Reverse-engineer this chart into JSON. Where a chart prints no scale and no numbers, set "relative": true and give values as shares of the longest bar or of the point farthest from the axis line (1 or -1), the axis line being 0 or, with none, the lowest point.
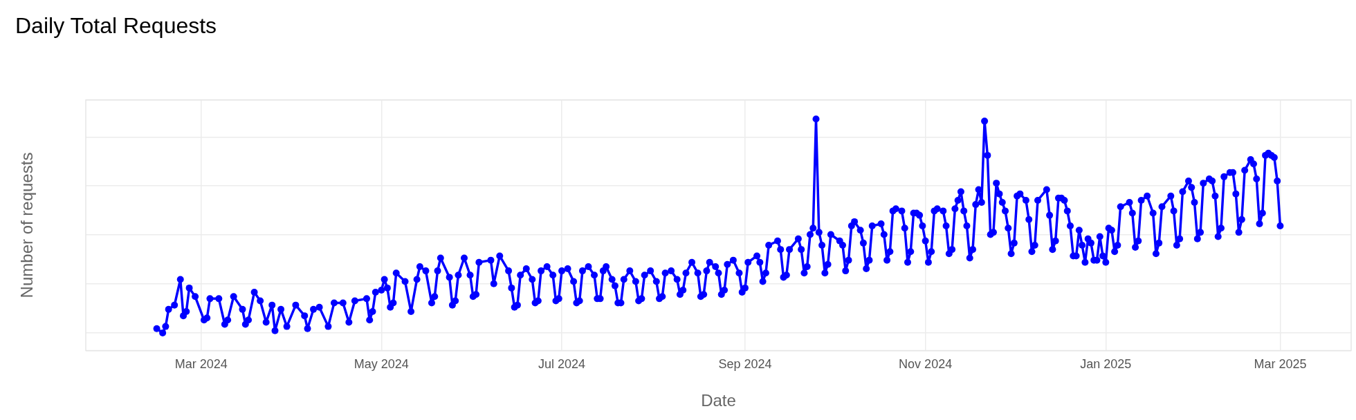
{
  "chart_data": {
    "type": "line",
    "title": "Daily Total Requests",
    "xlabel": "Date",
    "ylabel": "Number of requests",
    "relative": true,
    "grid": true,
    "legend": false,
    "marker": "circle",
    "line_style": "solid",
    "xlim": [
      "2024-01-22",
      "2025-03-25"
    ],
    "xticks": [
      {
        "value": "2024-03-01",
        "label": "Mar 2024"
      },
      {
        "value": "2024-05-01",
        "label": "May 2024"
      },
      {
        "value": "2024-07-01",
        "label": "Jul 2024"
      },
      {
        "value": "2024-09-01",
        "label": "Sep 2024"
      },
      {
        "value": "2024-11-01",
        "label": "Nov 2024"
      },
      {
        "value": "2025-01-01",
        "label": "Jan 2025"
      },
      {
        "value": "2025-03-01",
        "label": "Mar 2025"
      }
    ],
    "series": [
      {
        "color": "#0000ff",
        "x": [
          "2024-02-15",
          "2024-02-17",
          "2024-02-18",
          "2024-02-19",
          "2024-02-21",
          "2024-02-23",
          "2024-02-24",
          "2024-02-25",
          "2024-02-26",
          "2024-02-28",
          "2024-03-02",
          "2024-03-03",
          "2024-03-04",
          "2024-03-07",
          "2024-03-09",
          "2024-03-10",
          "2024-03-12",
          "2024-03-15",
          "2024-03-16",
          "2024-03-17",
          "2024-03-19",
          "2024-03-21",
          "2024-03-23",
          "2024-03-25",
          "2024-03-26",
          "2024-03-28",
          "2024-03-30",
          "2024-04-02",
          "2024-04-05",
          "2024-04-06",
          "2024-04-08",
          "2024-04-10",
          "2024-04-13",
          "2024-04-15",
          "2024-04-18",
          "2024-04-20",
          "2024-04-22",
          "2024-04-26",
          "2024-04-27",
          "2024-04-28",
          "2024-04-29",
          "2024-05-01",
          "2024-05-02",
          "2024-05-03",
          "2024-05-04",
          "2024-05-05",
          "2024-05-06",
          "2024-05-09",
          "2024-05-11",
          "2024-05-13",
          "2024-05-14",
          "2024-05-16",
          "2024-05-18",
          "2024-05-19",
          "2024-05-20",
          "2024-05-21",
          "2024-05-24",
          "2024-05-25",
          "2024-05-26",
          "2024-05-27",
          "2024-05-29",
          "2024-05-31",
          "2024-06-01",
          "2024-06-02",
          "2024-06-03",
          "2024-06-07",
          "2024-06-08",
          "2024-06-10",
          "2024-06-13",
          "2024-06-14",
          "2024-06-15",
          "2024-06-16",
          "2024-06-17",
          "2024-06-19",
          "2024-06-21",
          "2024-06-22",
          "2024-06-23",
          "2024-06-24",
          "2024-06-26",
          "2024-06-28",
          "2024-06-29",
          "2024-06-30",
          "2024-07-01",
          "2024-07-03",
          "2024-07-05",
          "2024-07-06",
          "2024-07-07",
          "2024-07-08",
          "2024-07-10",
          "2024-07-12",
          "2024-07-13",
          "2024-07-14",
          "2024-07-15",
          "2024-07-16",
          "2024-07-18",
          "2024-07-19",
          "2024-07-20",
          "2024-07-21",
          "2024-07-22",
          "2024-07-24",
          "2024-07-26",
          "2024-07-27",
          "2024-07-28",
          "2024-07-29",
          "2024-07-31",
          "2024-08-02",
          "2024-08-03",
          "2024-08-04",
          "2024-08-05",
          "2024-08-07",
          "2024-08-09",
          "2024-08-10",
          "2024-08-11",
          "2024-08-12",
          "2024-08-14",
          "2024-08-16",
          "2024-08-17",
          "2024-08-18",
          "2024-08-19",
          "2024-08-20",
          "2024-08-22",
          "2024-08-23",
          "2024-08-24",
          "2024-08-25",
          "2024-08-26",
          "2024-08-28",
          "2024-08-30",
          "2024-08-31",
          "2024-09-01",
          "2024-09-02",
          "2024-09-05",
          "2024-09-06",
          "2024-09-07",
          "2024-09-08",
          "2024-09-09",
          "2024-09-12",
          "2024-09-13",
          "2024-09-14",
          "2024-09-15",
          "2024-09-16",
          "2024-09-19",
          "2024-09-20",
          "2024-09-21",
          "2024-09-22",
          "2024-09-23",
          "2024-09-24",
          "2024-09-25",
          "2024-09-26",
          "2024-09-27",
          "2024-09-28",
          "2024-09-29",
          "2024-09-30",
          "2024-10-03",
          "2024-10-04",
          "2024-10-05",
          "2024-10-06",
          "2024-10-07",
          "2024-10-08",
          "2024-10-10",
          "2024-10-11",
          "2024-10-12",
          "2024-10-13",
          "2024-10-14",
          "2024-10-17",
          "2024-10-18",
          "2024-10-19",
          "2024-10-20",
          "2024-10-21",
          "2024-10-22",
          "2024-10-24",
          "2024-10-25",
          "2024-10-26",
          "2024-10-27",
          "2024-10-28",
          "2024-10-29",
          "2024-10-30",
          "2024-10-31",
          "2024-11-01",
          "2024-11-02",
          "2024-11-03",
          "2024-11-04",
          "2024-11-05",
          "2024-11-07",
          "2024-11-08",
          "2024-11-09",
          "2024-11-10",
          "2024-11-11",
          "2024-11-12",
          "2024-11-13",
          "2024-11-14",
          "2024-11-15",
          "2024-11-16",
          "2024-11-17",
          "2024-11-18",
          "2024-11-19",
          "2024-11-20",
          "2024-11-21",
          "2024-11-22",
          "2024-11-23",
          "2024-11-24",
          "2024-11-25",
          "2024-11-26",
          "2024-11-27",
          "2024-11-28",
          "2024-11-29",
          "2024-11-30",
          "2024-12-01",
          "2024-12-02",
          "2024-12-03",
          "2024-12-05",
          "2024-12-06",
          "2024-12-07",
          "2024-12-08",
          "2024-12-09",
          "2024-12-12",
          "2024-12-13",
          "2024-12-14",
          "2024-12-15",
          "2024-12-16",
          "2024-12-17",
          "2024-12-18",
          "2024-12-19",
          "2024-12-20",
          "2024-12-21",
          "2024-12-22",
          "2024-12-23",
          "2024-12-24",
          "2024-12-25",
          "2024-12-26",
          "2024-12-27",
          "2024-12-28",
          "2024-12-29",
          "2024-12-30",
          "2024-12-31",
          "2025-01-01",
          "2025-01-02",
          "2025-01-03",
          "2025-01-04",
          "2025-01-05",
          "2025-01-06",
          "2025-01-09",
          "2025-01-10",
          "2025-01-11",
          "2025-01-12",
          "2025-01-13",
          "2025-01-15",
          "2025-01-17",
          "2025-01-18",
          "2025-01-19",
          "2025-01-20",
          "2025-01-23",
          "2025-01-24",
          "2025-01-25",
          "2025-01-26",
          "2025-01-27",
          "2025-01-29",
          "2025-01-30",
          "2025-01-31",
          "2025-02-01",
          "2025-02-02",
          "2025-02-03",
          "2025-02-05",
          "2025-02-06",
          "2025-02-07",
          "2025-02-08",
          "2025-02-09",
          "2025-02-10",
          "2025-02-12",
          "2025-02-13",
          "2025-02-14",
          "2025-02-15",
          "2025-02-16",
          "2025-02-17",
          "2025-02-19",
          "2025-02-20",
          "2025-02-21",
          "2025-02-22",
          "2025-02-23",
          "2025-02-24",
          "2025-02-25",
          "2025-02-26",
          "2025-02-27",
          "2025-02-28",
          "2025-03-01"
        ],
        "values": [
          0.02,
          0,
          0.03,
          0.11,
          0.13,
          0.25,
          0.08,
          0.1,
          0.21,
          0.17,
          0.06,
          0.07,
          0.16,
          0.16,
          0.04,
          0.06,
          0.17,
          0.11,
          0.04,
          0.06,
          0.19,
          0.15,
          0.05,
          0.13,
          0.01,
          0.11,
          0.03,
          0.13,
          0.08,
          0.02,
          0.11,
          0.12,
          0.03,
          0.14,
          0.14,
          0.05,
          0.15,
          0.16,
          0.06,
          0.1,
          0.19,
          0.2,
          0.25,
          0.21,
          0.12,
          0.14,
          0.28,
          0.24,
          0.1,
          0.25,
          0.31,
          0.29,
          0.14,
          0.17,
          0.29,
          0.35,
          0.26,
          0.13,
          0.15,
          0.27,
          0.35,
          0.27,
          0.17,
          0.18,
          0.33,
          0.34,
          0.23,
          0.36,
          0.29,
          0.21,
          0.12,
          0.13,
          0.27,
          0.3,
          0.25,
          0.14,
          0.15,
          0.29,
          0.31,
          0.27,
          0.15,
          0.16,
          0.29,
          0.3,
          0.24,
          0.14,
          0.15,
          0.29,
          0.31,
          0.27,
          0.16,
          0.16,
          0.29,
          0.31,
          0.25,
          0.22,
          0.14,
          0.14,
          0.25,
          0.29,
          0.24,
          0.15,
          0.16,
          0.27,
          0.29,
          0.24,
          0.16,
          0.17,
          0.28,
          0.29,
          0.25,
          0.18,
          0.2,
          0.28,
          0.33,
          0.28,
          0.17,
          0.18,
          0.29,
          0.33,
          0.31,
          0.28,
          0.18,
          0.2,
          0.32,
          0.34,
          0.28,
          0.19,
          0.21,
          0.33,
          0.36,
          0.33,
          0.24,
          0.28,
          0.41,
          0.43,
          0.39,
          0.26,
          0.27,
          0.39,
          0.44,
          0.39,
          0.28,
          0.31,
          0.46,
          0.49,
          1,
          0.47,
          0.41,
          0.28,
          0.32,
          0.46,
          0.43,
          0.41,
          0.29,
          0.34,
          0.5,
          0.52,
          0.48,
          0.42,
          0.3,
          0.34,
          0.5,
          0.51,
          0.46,
          0.34,
          0.38,
          0.57,
          0.58,
          0.57,
          0.49,
          0.33,
          0.38,
          0.56,
          0.56,
          0.55,
          0.5,
          0.43,
          0.33,
          0.38,
          0.57,
          0.58,
          0.57,
          0.5,
          0.37,
          0.39,
          0.58,
          0.62,
          0.66,
          0.57,
          0.5,
          0.35,
          0.39,
          0.6,
          0.67,
          0.61,
          0.99,
          0.83,
          0.46,
          0.47,
          0.7,
          0.65,
          0.61,
          0.57,
          0.49,
          0.37,
          0.42,
          0.64,
          0.65,
          0.62,
          0.53,
          0.38,
          0.41,
          0.62,
          0.67,
          0.55,
          0.39,
          0.43,
          0.63,
          0.63,
          0.62,
          0.57,
          0.5,
          0.36,
          0.36,
          0.48,
          0.41,
          0.33,
          0.44,
          0.42,
          0.34,
          0.34,
          0.45,
          0.36,
          0.33,
          0.49,
          0.48,
          0.38,
          0.41,
          0.59,
          0.61,
          0.56,
          0.4,
          0.43,
          0.62,
          0.64,
          0.56,
          0.37,
          0.42,
          0.59,
          0.64,
          0.57,
          0.41,
          0.44,
          0.66,
          0.71,
          0.68,
          0.61,
          0.44,
          0.47,
          0.7,
          0.72,
          0.71,
          0.64,
          0.45,
          0.49,
          0.73,
          0.75,
          0.75,
          0.65,
          0.47,
          0.53,
          0.76,
          0.81,
          0.79,
          0.72,
          0.51,
          0.56,
          0.83,
          0.84,
          0.83,
          0.82,
          0.71,
          0.5
        ]
      }
    ]
  }
}
